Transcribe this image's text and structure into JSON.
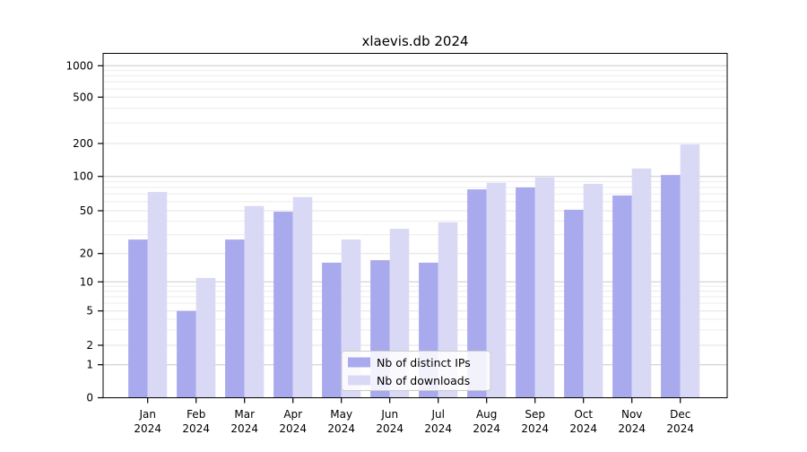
{
  "chart_data": {
    "type": "bar",
    "title": "xlaevis.db 2024",
    "categories": [
      "Jan",
      "Feb",
      "Mar",
      "Apr",
      "May",
      "Jun",
      "Jul",
      "Aug",
      "Sep",
      "Oct",
      "Nov",
      "Dec"
    ],
    "year_label": "2024",
    "series": [
      {
        "name": "Nb of distinct IPs",
        "color": "#a9a9ee",
        "values": [
          27,
          5,
          27,
          49,
          16,
          17,
          16,
          77,
          80,
          51,
          68,
          103
        ]
      },
      {
        "name": "Nb of downloads",
        "color": "#d9d9f6",
        "values": [
          73,
          11,
          55,
          66,
          27,
          34,
          39,
          88,
          98,
          86,
          118,
          196
        ]
      }
    ],
    "y_ticks": [
      0,
      1,
      2,
      5,
      10,
      20,
      50,
      100,
      200,
      500,
      1000
    ],
    "y_minor_ticks": [
      3,
      4,
      6,
      7,
      8,
      9,
      30,
      40,
      60,
      70,
      80,
      90,
      300,
      400,
      600,
      700,
      800,
      900
    ],
    "y_major_gridlines": [
      1,
      10,
      100,
      1000
    ],
    "y_mid_gridlines": [
      2,
      5,
      20,
      50,
      200,
      500
    ],
    "y_scale": "symlog (log above 1, linear 0-1)",
    "ylim": [
      0,
      1300
    ],
    "grid": "on",
    "legend_position": "lower center",
    "colors": {
      "major_grid": "#c8c8c8",
      "mid_grid": "#e3e3e3",
      "minor_grid": "#ececec",
      "spine": "#000000",
      "legend_border": "#cccccc",
      "legend_bg": "#ffffff"
    }
  }
}
